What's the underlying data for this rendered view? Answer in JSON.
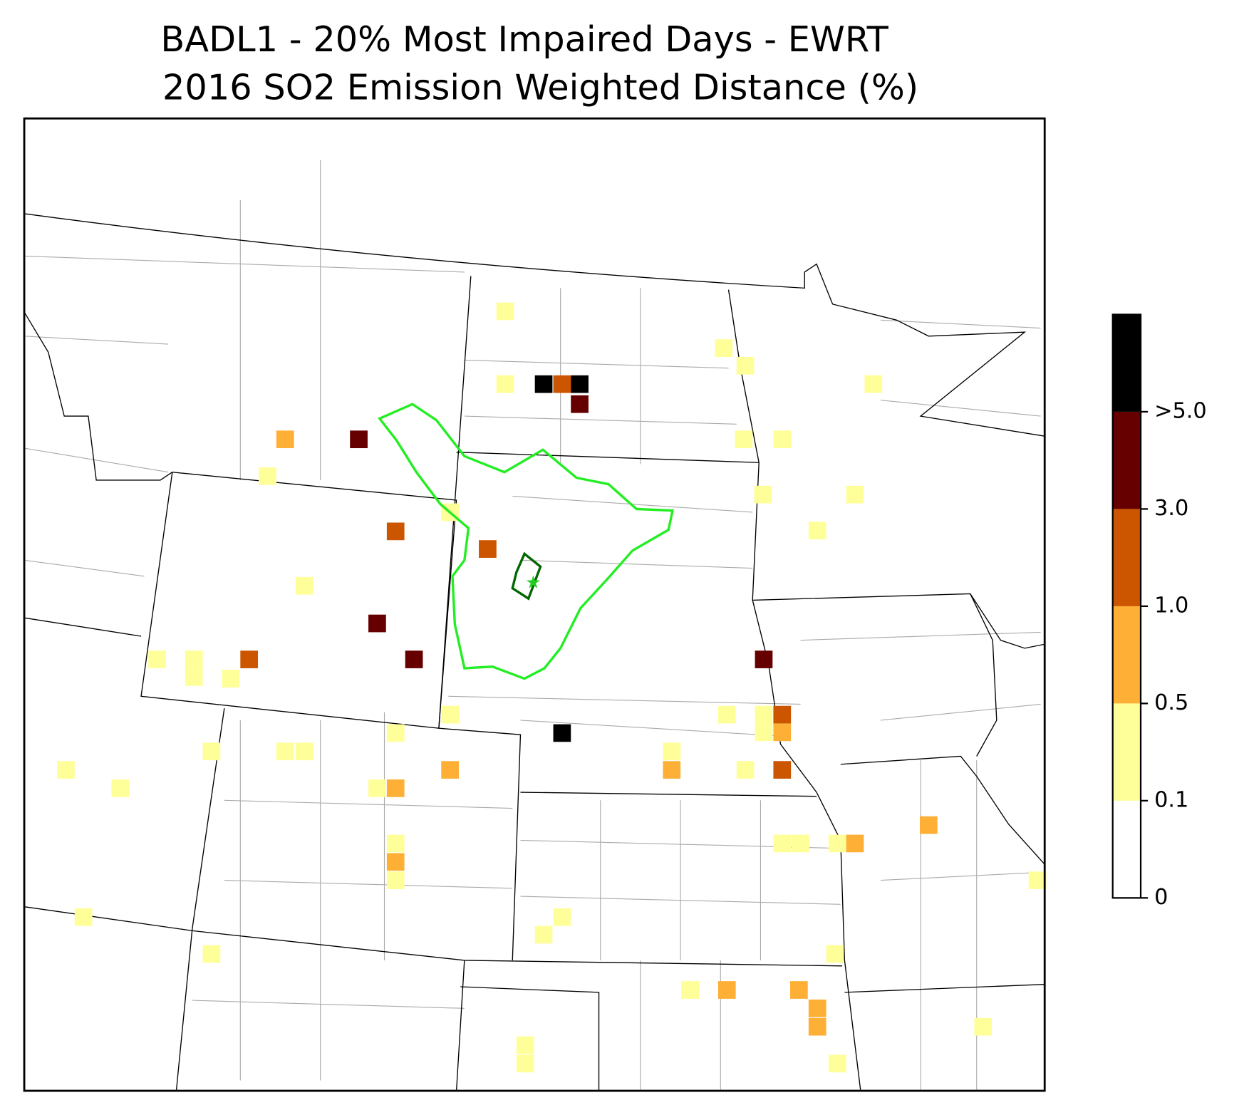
{
  "title": "BADL1 - 20% Most Impaired Days - EWRT",
  "subtitle": "2016 SO2 Emission Weighted Distance (%)",
  "colorbar": {
    "colors": [
      "#ffffff",
      "#ffff99",
      "#fdb035",
      "#cc5500",
      "#660000",
      "#000000"
    ],
    "ticks": [
      0,
      0.1,
      0.5,
      {
        "value": 1,
        "label": "1.0"
      },
      {
        "value": 3,
        "label": "3.0"
      },
      {
        "value": 5,
        "label": ">5.0"
      }
    ]
  }
}
